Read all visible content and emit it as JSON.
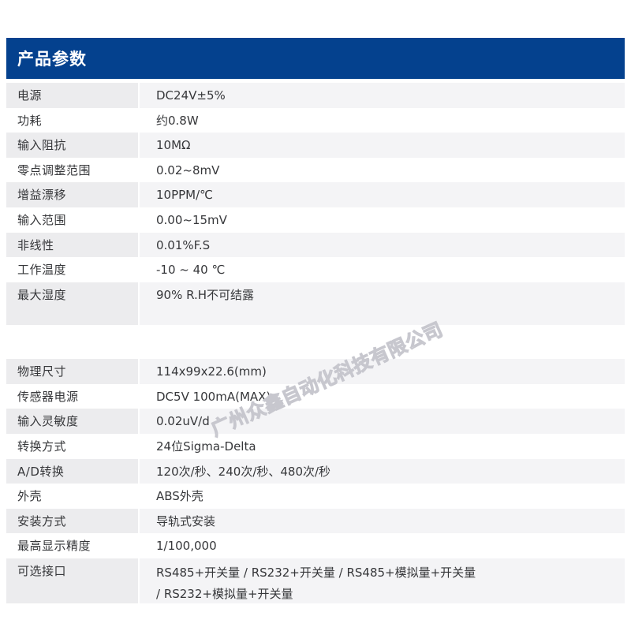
{
  "page": {
    "title": "产品参数"
  },
  "theme": {
    "header_bg": "#04418e",
    "header_text": "#ffffff",
    "stripe_label_bg": "#ececee",
    "stripe_value_bg": "#f4f4f6",
    "text_color": "#36373a"
  },
  "tables": [
    {
      "name": "electrical-specs",
      "rows": [
        {
          "label": "电源",
          "value": "DC24V±5%"
        },
        {
          "label": "功耗",
          "value": "约0.8W"
        },
        {
          "label": "输入阻抗",
          "value": "10MΩ"
        },
        {
          "label": "零点调整范围",
          "value": "0.02~8mV"
        },
        {
          "label": "增益漂移",
          "value": "10PPM/℃"
        },
        {
          "label": "输入范围",
          "value": "0.00~15mV"
        },
        {
          "label": "非线性",
          "value": "0.01%F.S"
        },
        {
          "label": "工作温度",
          "value": "-10 ~ 40 ℃"
        },
        {
          "label": "最大湿度",
          "value": "90% R.H不可结露"
        }
      ]
    },
    {
      "name": "physical-specs",
      "rows": [
        {
          "label": "物理尺寸",
          "value": "114x99x22.6(mm)"
        },
        {
          "label": "传感器电源",
          "value": "DC5V 100mA(MAX)"
        },
        {
          "label": "输入灵敏度",
          "value": "0.02uV/d"
        },
        {
          "label": "转换方式",
          "value": "24位Sigma-Delta"
        },
        {
          "label": "A/D转换",
          "value": "120次/秒、240次/秒、480次/秒"
        },
        {
          "label": "外壳",
          "value": "ABS外壳"
        },
        {
          "label": "安装方式",
          "value": "导轨式安装"
        },
        {
          "label": "最高显示精度",
          "value": "1/100,000"
        },
        {
          "label": "可选接口",
          "value": "RS485+开关量 / RS232+开关量 / RS485+模拟量+开关量\n/ RS232+模拟量+开关量"
        }
      ]
    }
  ],
  "watermark": {
    "text": "广州众鑫自动化科技有限公司"
  }
}
